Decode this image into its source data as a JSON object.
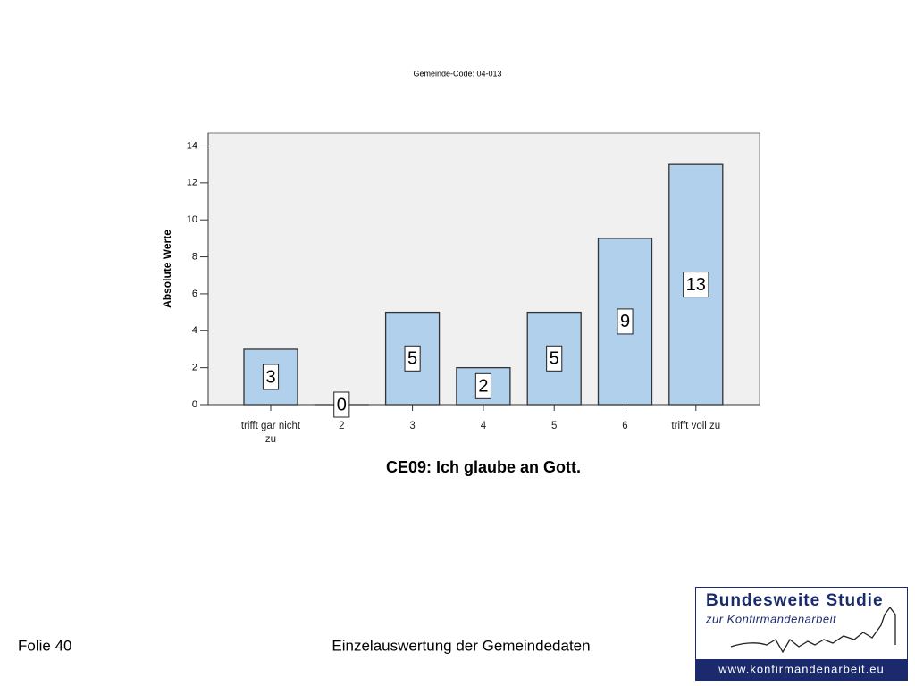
{
  "chart_data": {
    "type": "bar",
    "title": "Gemeinde-Code: 04-013",
    "x_label": "CE09: Ich glaube an Gott.",
    "y_label": "Absolute Werte",
    "categories": [
      "trifft gar nicht zu",
      "2",
      "3",
      "4",
      "5",
      "6",
      "trifft voll zu"
    ],
    "values": [
      3,
      0,
      5,
      2,
      5,
      9,
      13
    ],
    "color": "#b0d0ec",
    "ylim": [
      0,
      14.7
    ],
    "yticks": [
      0,
      2,
      4,
      6,
      8,
      10,
      12,
      14
    ],
    "grid": false
  },
  "footer": {
    "slide": "Folie 40",
    "center": "Einzelauswertung der Gemeindedaten"
  },
  "logo": {
    "line1": "Bundesweite Studie",
    "line2": "zur Konfirmandenarbeit",
    "url": "www.konfirmandenarbeit.eu"
  }
}
